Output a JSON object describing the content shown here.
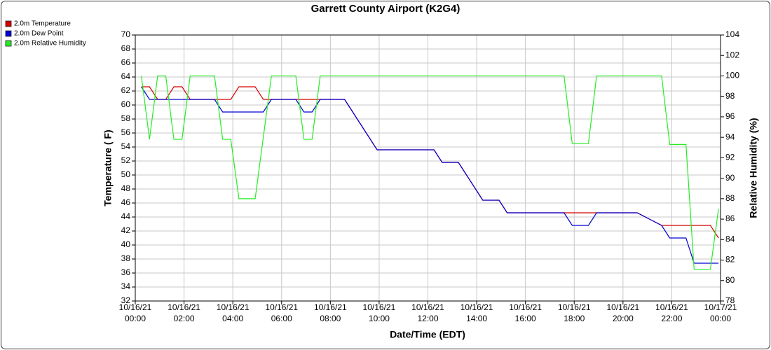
{
  "chart_data": {
    "type": "line",
    "title": "Garrett County Airport (K2G4)",
    "xlabel": "Date/Time (EDT)",
    "ylabel": "Temperature ( F)",
    "y2label": "Relative Humidity (%)",
    "x": [
      "10/16/21 00:15",
      "10/16/21 00:35",
      "10/16/21 00:55",
      "10/16/21 01:15",
      "10/16/21 01:35",
      "10/16/21 01:55",
      "10/16/21 02:15",
      "10/16/21 02:35",
      "10/16/21 02:55",
      "10/16/21 03:15",
      "10/16/21 03:35",
      "10/16/21 03:55",
      "10/16/21 04:15",
      "10/16/21 04:35",
      "10/16/21 04:55",
      "10/16/21 05:15",
      "10/16/21 05:35",
      "10/16/21 05:55",
      "10/16/21 06:15",
      "10/16/21 06:35",
      "10/16/21 06:55",
      "10/16/21 07:15",
      "10/16/21 07:35",
      "10/16/21 07:55",
      "10/16/21 08:15",
      "10/16/21 08:35",
      "10/16/21 08:55",
      "10/16/21 09:15",
      "10/16/21 09:35",
      "10/16/21 09:55",
      "10/16/21 10:15",
      "10/16/21 10:35",
      "10/16/21 10:55",
      "10/16/21 11:15",
      "10/16/21 11:35",
      "10/16/21 11:55",
      "10/16/21 12:15",
      "10/16/21 12:35",
      "10/16/21 12:55",
      "10/16/21 13:15",
      "10/16/21 13:35",
      "10/16/21 13:55",
      "10/16/21 14:15",
      "10/16/21 14:35",
      "10/16/21 14:55",
      "10/16/21 15:15",
      "10/16/21 15:35",
      "10/16/21 15:55",
      "10/16/21 16:15",
      "10/16/21 16:35",
      "10/16/21 16:55",
      "10/16/21 17:15",
      "10/16/21 17:35",
      "10/16/21 17:55",
      "10/16/21 18:15",
      "10/16/21 18:35",
      "10/16/21 18:55",
      "10/16/21 19:15",
      "10/16/21 19:35",
      "10/16/21 19:55",
      "10/16/21 20:15",
      "10/16/21 20:35",
      "10/16/21 20:55",
      "10/16/21 21:15",
      "10/16/21 21:35",
      "10/16/21 21:55",
      "10/16/21 22:15",
      "10/16/21 22:35",
      "10/16/21 22:55",
      "10/16/21 23:15",
      "10/16/21 23:35",
      "10/16/21 23:55"
    ],
    "series": [
      {
        "name": "2.0m Temperature",
        "color": "#d40000",
        "values": [
          62.6,
          62.6,
          60.8,
          60.8,
          62.6,
          62.6,
          60.8,
          60.8,
          60.8,
          60.8,
          60.8,
          60.8,
          62.6,
          62.6,
          62.6,
          60.8,
          60.8,
          60.8,
          60.8,
          60.8,
          60.8,
          60.8,
          60.8,
          60.8,
          60.8,
          60.8,
          59,
          57.2,
          55.4,
          53.6,
          53.6,
          53.6,
          53.6,
          53.6,
          53.6,
          53.6,
          53.6,
          51.8,
          51.8,
          51.8,
          50,
          48.2,
          46.4,
          46.4,
          46.4,
          44.6,
          44.6,
          44.6,
          44.6,
          44.6,
          44.6,
          44.6,
          44.6,
          44.6,
          44.6,
          44.6,
          44.6,
          44.6,
          44.6,
          44.6,
          44.6,
          44.6,
          44,
          43.4,
          42.8,
          42.8,
          42.8,
          42.8,
          42.8,
          42.8,
          42.8,
          41
        ]
      },
      {
        "name": "2.0m Dew Point",
        "color": "#0000d4",
        "values": [
          62.6,
          60.8,
          60.8,
          60.8,
          60.8,
          60.8,
          60.8,
          60.8,
          60.8,
          60.8,
          59,
          59,
          59,
          59,
          59,
          59,
          60.8,
          60.8,
          60.8,
          60.8,
          59,
          59,
          60.8,
          60.8,
          60.8,
          60.8,
          59,
          57.2,
          55.4,
          53.6,
          53.6,
          53.6,
          53.6,
          53.6,
          53.6,
          53.6,
          53.6,
          51.8,
          51.8,
          51.8,
          50,
          48.2,
          46.4,
          46.4,
          46.4,
          44.6,
          44.6,
          44.6,
          44.6,
          44.6,
          44.6,
          44.6,
          44.6,
          42.8,
          42.8,
          42.8,
          44.6,
          44.6,
          44.6,
          44.6,
          44.6,
          44.6,
          44,
          43.4,
          42.8,
          41,
          41,
          41,
          37.4,
          37.4,
          37.4,
          37.4
        ]
      },
      {
        "name": "2.0m Relative Humidity",
        "color": "#22ee22",
        "axis": "y2",
        "values": [
          100,
          93.8,
          100,
          100,
          93.8,
          93.8,
          100,
          100,
          100,
          100,
          93.8,
          93.8,
          88,
          88,
          88,
          94,
          100,
          100,
          100,
          100,
          93.8,
          93.8,
          100,
          100,
          100,
          100,
          100,
          100,
          100,
          100,
          100,
          100,
          100,
          100,
          100,
          100,
          100,
          100,
          100,
          100,
          100,
          100,
          100,
          100,
          100,
          100,
          100,
          100,
          100,
          100,
          100,
          100,
          100,
          93.4,
          93.4,
          93.4,
          100,
          100,
          100,
          100,
          100,
          100,
          100,
          100,
          100,
          93.3,
          93.3,
          93.3,
          81.1,
          81.1,
          81.1,
          87
        ]
      }
    ],
    "xlim": [
      "10/16/21 00:00",
      "10/17/21 00:00"
    ],
    "xticks": [
      "10/16/21 00:00",
      "10/16/21 02:00",
      "10/16/21 04:00",
      "10/16/21 06:00",
      "10/16/21 08:00",
      "10/16/21 10:00",
      "10/16/21 12:00",
      "10/16/21 14:00",
      "10/16/21 16:00",
      "10/16/21 18:00",
      "10/16/21 20:00",
      "10/16/21 22:00",
      "10/17/21 00:00"
    ],
    "ylim": [
      32,
      70
    ],
    "yticks": [
      32,
      34,
      36,
      38,
      40,
      42,
      44,
      46,
      48,
      50,
      52,
      54,
      56,
      58,
      60,
      62,
      64,
      66,
      68,
      70
    ],
    "y2lim": [
      78,
      104
    ],
    "y2ticks": [
      78,
      80,
      82,
      84,
      86,
      88,
      90,
      92,
      94,
      96,
      98,
      100,
      102,
      104
    ],
    "grid": true,
    "legend": "top-left"
  }
}
